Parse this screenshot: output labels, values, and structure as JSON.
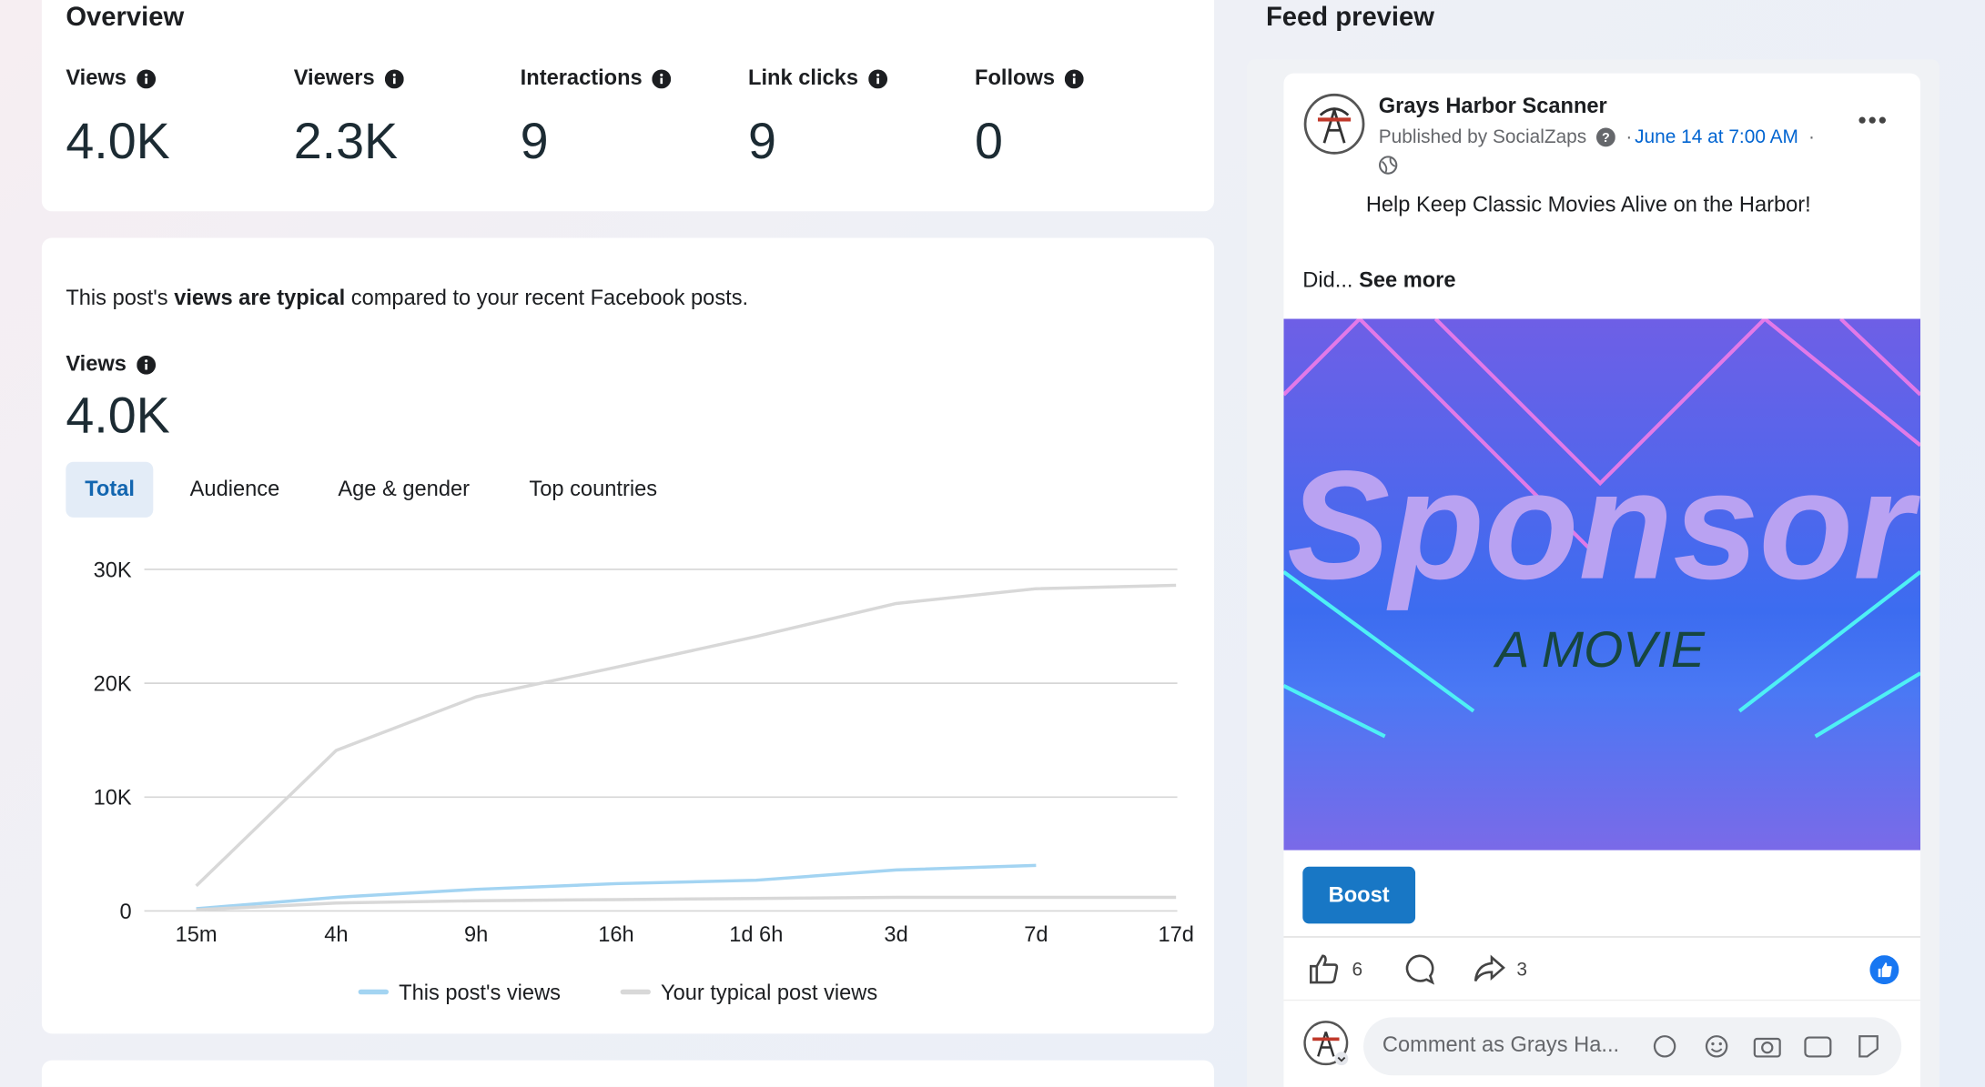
{
  "overview": {
    "title": "Overview",
    "metrics": [
      {
        "label": "Views",
        "value": "4.0K"
      },
      {
        "label": "Viewers",
        "value": "2.3K"
      },
      {
        "label": "Interactions",
        "value": 9
      },
      {
        "label": "Link clicks",
        "value": 9
      },
      {
        "label": "Follows",
        "value": 0
      }
    ]
  },
  "summary": {
    "prefix": "This post's",
    "emphasis": "views are typical",
    "suffix": "compared to your recent Facebook posts."
  },
  "views": {
    "label": "Views",
    "value": "4.0K"
  },
  "tabs": [
    "Total",
    "Audience",
    "Age & gender",
    "Top countries"
  ],
  "chart_data": {
    "type": "line",
    "categories": [
      "15m",
      "4h",
      "9h",
      "16h",
      "1d 6h",
      "3d",
      "7d",
      "17d"
    ],
    "series": [
      {
        "name": "This post's views",
        "color": "#a3d4f2",
        "values": [
          200,
          1200,
          1900,
          2400,
          2700,
          3600,
          4000,
          null
        ]
      },
      {
        "name": "Your typical post views",
        "color": "#d8d8d8",
        "values": [
          100,
          700,
          900,
          1000,
          1100,
          1200,
          1200,
          1200
        ],
        "upper": [
          2200,
          14100,
          18800,
          21400,
          24100,
          27000,
          28300,
          28600
        ]
      }
    ],
    "ylim": [
      0,
      30000
    ],
    "yticks": [
      0,
      {
        "value": 10000,
        "label": "10K"
      },
      {
        "value": 20000,
        "label": "20K"
      },
      {
        "value": 30000,
        "label": "30K"
      }
    ],
    "grid": true
  },
  "feed": {
    "title": "Feed preview",
    "page_name": "Grays Harbor Scanner",
    "published_by": "Published by SocialZaps",
    "date": "June 14 at 7:00 AM",
    "text": "Help Keep Classic Movies Alive on the Harbor!",
    "truncated": "Did...",
    "see_more": "See more",
    "image_text": [
      "Sponsor",
      "A MOVIE"
    ],
    "boost": "Boost",
    "likes": 6,
    "shares": 3,
    "comment_placeholder": "Comment as Grays Ha..."
  }
}
